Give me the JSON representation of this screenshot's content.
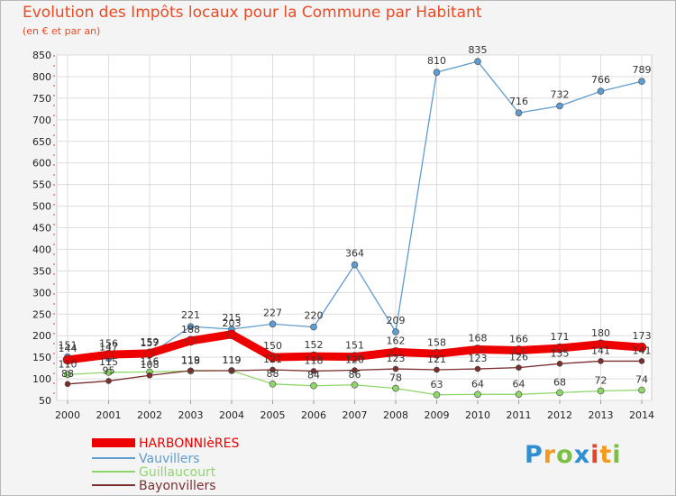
{
  "chart_data": {
    "type": "line",
    "title": "Evolution des Impôts locaux pour la Commune par Habitant",
    "subtitle": "(en € et par an)",
    "xlabel": "",
    "ylabel": "",
    "ylim": [
      50,
      850
    ],
    "y_ticks": [
      50,
      100,
      150,
      200,
      250,
      300,
      350,
      400,
      450,
      500,
      550,
      600,
      650,
      700,
      750,
      800,
      850
    ],
    "categories": [
      "2000",
      "2001",
      "2002",
      "2003",
      "2004",
      "2005",
      "2006",
      "2007",
      "2008",
      "2009",
      "2010",
      "2011",
      "2012",
      "2013",
      "2014"
    ],
    "series": [
      {
        "name": "HARBONNIèRES",
        "color": "#ee0000",
        "values": [
          144,
          156,
          159,
          188,
          203,
          150,
          152,
          151,
          162,
          158,
          168,
          166,
          171,
          180,
          173
        ],
        "labels": [
          "144",
          "156",
          "159",
          "188",
          "203",
          "150",
          "152",
          "151",
          "162",
          "158",
          "168",
          "166",
          "171",
          "180",
          "173"
        ]
      },
      {
        "name": "Vauvillers",
        "color": "#5f9ccf",
        "values": [
          151,
          147,
          157,
          221,
          215,
          227,
          220,
          364,
          209,
          810,
          835,
          716,
          732,
          766,
          789
        ],
        "labels": [
          "151",
          "147",
          "157",
          "221",
          "215",
          "227",
          "220",
          "364",
          "209",
          "810",
          "835",
          "716",
          "732",
          "766",
          "789"
        ]
      },
      {
        "name": "Guillaucourt",
        "color": "#8fd66a",
        "values": [
          110,
          115,
          116,
          118,
          119,
          88,
          84,
          86,
          78,
          63,
          64,
          64,
          68,
          72,
          74
        ],
        "labels": [
          "110",
          "115",
          "116",
          "118",
          "119",
          "88",
          "84",
          "86",
          "78",
          "63",
          "64",
          "64",
          "68",
          "72",
          "74"
        ]
      },
      {
        "name": "Bayonvillers",
        "color": "#7a2e2e",
        "values": [
          88,
          95,
          108,
          119,
          119,
          121,
          118,
          120,
          123,
          121,
          123,
          126,
          135,
          141,
          141
        ],
        "labels": [
          "88",
          "95",
          "108",
          "119",
          "119",
          "121",
          "118",
          "120",
          "123",
          "121",
          "123",
          "126",
          "135",
          "141",
          "141"
        ]
      }
    ],
    "legend_position": "bottom-left",
    "grid": true
  },
  "logo": {
    "text": "Proxiti"
  }
}
